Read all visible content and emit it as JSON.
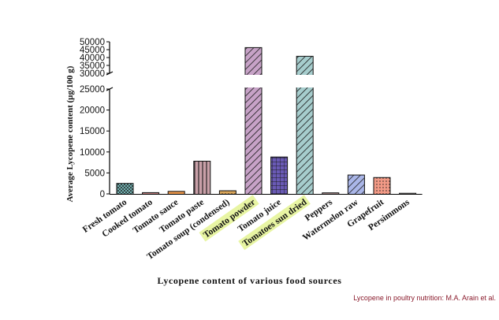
{
  "chart_data": {
    "type": "bar",
    "title": "Lycopene content of various food sources",
    "xlabel": "",
    "ylabel": "Average Lycopene content (µg/100 g)",
    "categories": [
      "Fresh tomato",
      "Cooked tomato",
      "Tomato sauce",
      "Tomato paste",
      "Tomato soup (condensed)",
      "Tomato powder",
      "Tomato juice",
      "Tomatoes sun dried",
      "Peppers",
      "Watermelon raw",
      "Grapefruit",
      "Persimmons"
    ],
    "values": [
      2500,
      300,
      600,
      7800,
      750,
      46300,
      8800,
      40800,
      250,
      4500,
      3900,
      150
    ],
    "highlighted_categories": [
      "Tomato powder",
      "Tomatoes sun dried"
    ],
    "bar_colors": [
      "#7ec4c4",
      "#c58080",
      "#e8954a",
      "#c9a0a8",
      "#d9a55a",
      "#c7a2c7",
      "#6a5ab5",
      "#a6cdcd",
      "#b09090",
      "#aab6e8",
      "#f29a86",
      "#b0a8a8"
    ],
    "bar_patterns": [
      "cross",
      "solid",
      "solid",
      "vertical",
      "dots",
      "diag",
      "grid",
      "diag",
      "solid",
      "diag",
      "dots",
      "solid"
    ],
    "y_axis_break": {
      "lower_range": [
        0,
        25000
      ],
      "upper_range": [
        30000,
        50000
      ]
    },
    "y_ticks_lower": [
      0,
      5000,
      10000,
      15000,
      20000,
      25000
    ],
    "y_ticks_upper": [
      30000,
      35000,
      40000,
      45000,
      50000
    ],
    "y_tick_labels_lower": [
      "0",
      "5000",
      "10000",
      "15000",
      "20000",
      "25000"
    ],
    "y_tick_labels_upper": [
      "30000",
      "35000",
      "40000",
      "45000",
      "50000"
    ],
    "highlight_color": "#e8f5a3"
  },
  "caption": "Lycopene content of various food sources",
  "credit": "Lycopene in poultry nutrition: M.A. Arain et al."
}
